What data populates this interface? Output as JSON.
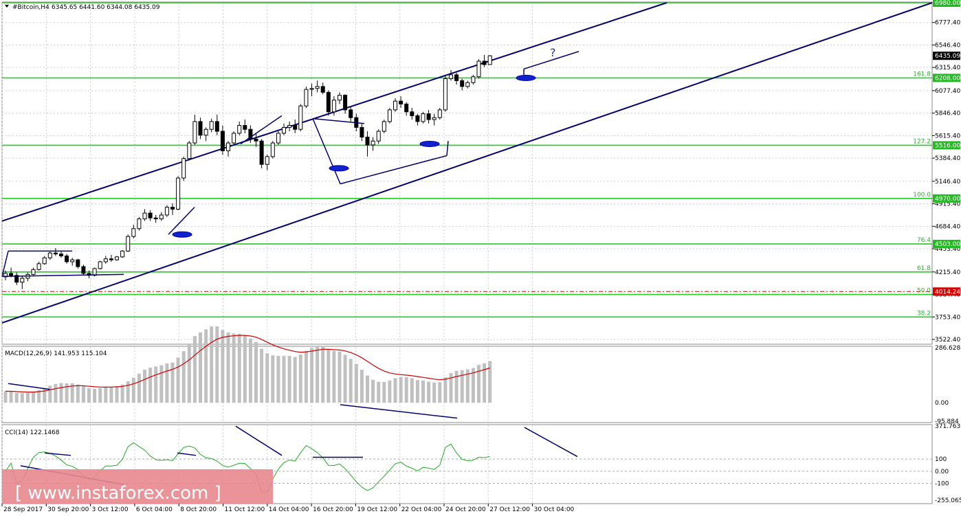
{
  "header": {
    "symbol": "#Bitcoin,H4",
    "ohlc": "6345.65 6441.60 6344.08 6435.09"
  },
  "price_axis_ticks": [
    "6777.40",
    "6546.40",
    "6315.40",
    "6077.40",
    "5846.40",
    "5615.40",
    "5384.40",
    "5146.40",
    "4915.40",
    "4684.40",
    "4453.40",
    "4215.40",
    "3984.40",
    "3753.40",
    "3522.40"
  ],
  "price_tags": [
    {
      "label": "6980.00",
      "kind": "green"
    },
    {
      "label": "6435.09",
      "kind": "price"
    },
    {
      "label": "6208.00",
      "kind": "green"
    },
    {
      "label": "5516.00",
      "kind": "green"
    },
    {
      "label": "4970.00",
      "kind": "green"
    },
    {
      "label": "4503.00",
      "kind": "green"
    },
    {
      "label": "4014.24",
      "kind": "red"
    }
  ],
  "fib_levels": [
    {
      "label": "161.8",
      "price": 6208
    },
    {
      "label": "127.2",
      "price": 5516
    },
    {
      "label": "100.0",
      "price": 4970
    },
    {
      "label": "76.4",
      "price": 4503
    },
    {
      "label": "61.8",
      "price": 4215
    },
    {
      "label": "50.0",
      "price": 3984
    },
    {
      "label": "38.2",
      "price": 3753
    }
  ],
  "time_axis": [
    "28 Sep 2017",
    "30 Sep 20:00",
    "3 Oct 12:00",
    "6 Oct 04:00",
    "8 Oct 20:00",
    "11 Oct 12:00",
    "14 Oct 04:00",
    "16 Oct 20:00",
    "19 Oct 12:00",
    "22 Oct 04:00",
    "24 Oct 20:00",
    "27 Oct 12:00",
    "30 Oct 04:00"
  ],
  "annotation": "?",
  "macd": {
    "label": "MACD(12,26,9) 141.953 115.104",
    "ticks": [
      "286.628",
      "0.00",
      "-95.884"
    ]
  },
  "cci": {
    "label": "CCI(14) 122.1468",
    "ticks": [
      "371.7637",
      "100",
      "0.00",
      "-100",
      "-255.0655"
    ]
  },
  "watermark": "[ www.instaforex.com ]",
  "colors": {
    "level_green": "#22cc22",
    "channel_blue": "#00006e",
    "tag_green": "#22bb22",
    "tag_red": "#dd0000",
    "macd_hist": "#c0c0c0",
    "macd_signal": "#cc0000",
    "cci_line": "#22aa22",
    "grid": "#c8ccd2",
    "watermark_bg": "#e8888f"
  },
  "chart_data": {
    "type": "candlestick",
    "series": [
      {
        "name": "#Bitcoin,H4",
        "values": [
          [
            4165,
            4230,
            4130,
            4200
          ],
          [
            4200,
            4260,
            4160,
            4180
          ],
          [
            4180,
            4210,
            4080,
            4110
          ],
          [
            4110,
            4170,
            4040,
            4150
          ],
          [
            4150,
            4210,
            4120,
            4190
          ],
          [
            4190,
            4260,
            4180,
            4240
          ],
          [
            4240,
            4320,
            4230,
            4300
          ],
          [
            4300,
            4380,
            4290,
            4360
          ],
          [
            4360,
            4430,
            4340,
            4410
          ],
          [
            4410,
            4460,
            4380,
            4400
          ],
          [
            4400,
            4430,
            4360,
            4380
          ],
          [
            4380,
            4400,
            4300,
            4320
          ],
          [
            4320,
            4360,
            4280,
            4340
          ],
          [
            4340,
            4350,
            4250,
            4270
          ],
          [
            4270,
            4290,
            4180,
            4200
          ],
          [
            4200,
            4230,
            4150,
            4180
          ],
          [
            4180,
            4260,
            4170,
            4250
          ],
          [
            4250,
            4330,
            4240,
            4320
          ],
          [
            4320,
            4380,
            4300,
            4350
          ],
          [
            4350,
            4390,
            4320,
            4340
          ],
          [
            4340,
            4380,
            4330,
            4370
          ],
          [
            4370,
            4440,
            4360,
            4430
          ],
          [
            4430,
            4600,
            4420,
            4580
          ],
          [
            4580,
            4700,
            4560,
            4660
          ],
          [
            4660,
            4780,
            4640,
            4760
          ],
          [
            4760,
            4860,
            4740,
            4820
          ],
          [
            4820,
            4850,
            4740,
            4770
          ],
          [
            4770,
            4800,
            4720,
            4760
          ],
          [
            4760,
            4830,
            4740,
            4800
          ],
          [
            4800,
            4900,
            4780,
            4880
          ],
          [
            4880,
            4920,
            4800,
            4860
          ],
          [
            4860,
            5200,
            4850,
            5180
          ],
          [
            5180,
            5400,
            5150,
            5380
          ],
          [
            5380,
            5560,
            5360,
            5540
          ],
          [
            5540,
            5830,
            5520,
            5760
          ],
          [
            5760,
            5800,
            5580,
            5620
          ],
          [
            5620,
            5700,
            5560,
            5680
          ],
          [
            5680,
            5790,
            5650,
            5760
          ],
          [
            5760,
            5830,
            5620,
            5660
          ],
          [
            5660,
            5720,
            5420,
            5460
          ],
          [
            5460,
            5560,
            5400,
            5540
          ],
          [
            5540,
            5660,
            5520,
            5640
          ],
          [
            5640,
            5760,
            5620,
            5720
          ],
          [
            5720,
            5780,
            5640,
            5680
          ],
          [
            5680,
            5720,
            5540,
            5580
          ],
          [
            5580,
            5640,
            5500,
            5560
          ],
          [
            5560,
            5580,
            5280,
            5320
          ],
          [
            5320,
            5420,
            5260,
            5400
          ],
          [
            5400,
            5560,
            5380,
            5540
          ],
          [
            5540,
            5660,
            5520,
            5640
          ],
          [
            5640,
            5740,
            5620,
            5700
          ],
          [
            5700,
            5760,
            5660,
            5720
          ],
          [
            5720,
            5780,
            5640,
            5680
          ],
          [
            5680,
            5940,
            5660,
            5920
          ],
          [
            5920,
            6120,
            5900,
            6090
          ],
          [
            6090,
            6150,
            6020,
            6100
          ],
          [
            6100,
            6180,
            6060,
            6120
          ],
          [
            6120,
            6160,
            6040,
            6060
          ],
          [
            6060,
            6080,
            5820,
            5860
          ],
          [
            5860,
            6020,
            5820,
            5980
          ],
          [
            5980,
            6060,
            5940,
            6030
          ],
          [
            6030,
            6040,
            5840,
            5880
          ],
          [
            5880,
            5920,
            5760,
            5800
          ],
          [
            5800,
            5840,
            5660,
            5700
          ],
          [
            5700,
            5740,
            5560,
            5600
          ],
          [
            5600,
            5660,
            5400,
            5520
          ],
          [
            5520,
            5600,
            5460,
            5560
          ],
          [
            5560,
            5680,
            5530,
            5660
          ],
          [
            5660,
            5780,
            5640,
            5760
          ],
          [
            5760,
            5900,
            5740,
            5880
          ],
          [
            5880,
            6000,
            5860,
            5970
          ],
          [
            5970,
            6020,
            5900,
            5940
          ],
          [
            5940,
            5960,
            5820,
            5860
          ],
          [
            5860,
            5900,
            5780,
            5820
          ],
          [
            5820,
            5840,
            5720,
            5760
          ],
          [
            5760,
            5860,
            5740,
            5840
          ],
          [
            5840,
            5880,
            5740,
            5780
          ],
          [
            5780,
            5840,
            5720,
            5800
          ],
          [
            5800,
            5900,
            5780,
            5880
          ],
          [
            5880,
            6240,
            5860,
            6200
          ],
          [
            6200,
            6290,
            6180,
            6240
          ],
          [
            6240,
            6260,
            6140,
            6180
          ],
          [
            6180,
            6200,
            6080,
            6120
          ],
          [
            6120,
            6180,
            6100,
            6160
          ],
          [
            6160,
            6240,
            6140,
            6220
          ],
          [
            6220,
            6400,
            6200,
            6380
          ],
          [
            6380,
            6445,
            6320,
            6345
          ],
          [
            6345,
            6441.6,
            6344.08,
            6435.09
          ]
        ]
      }
    ],
    "xlabel": "",
    "ylabel": "",
    "ylim": [
      3480,
      6980
    ],
    "grid": true,
    "indicators": {
      "MACD(12,26,9)": {
        "main": 141.953,
        "signal": 115.104
      },
      "CCI(14)": {
        "value": 122.1468
      }
    }
  }
}
